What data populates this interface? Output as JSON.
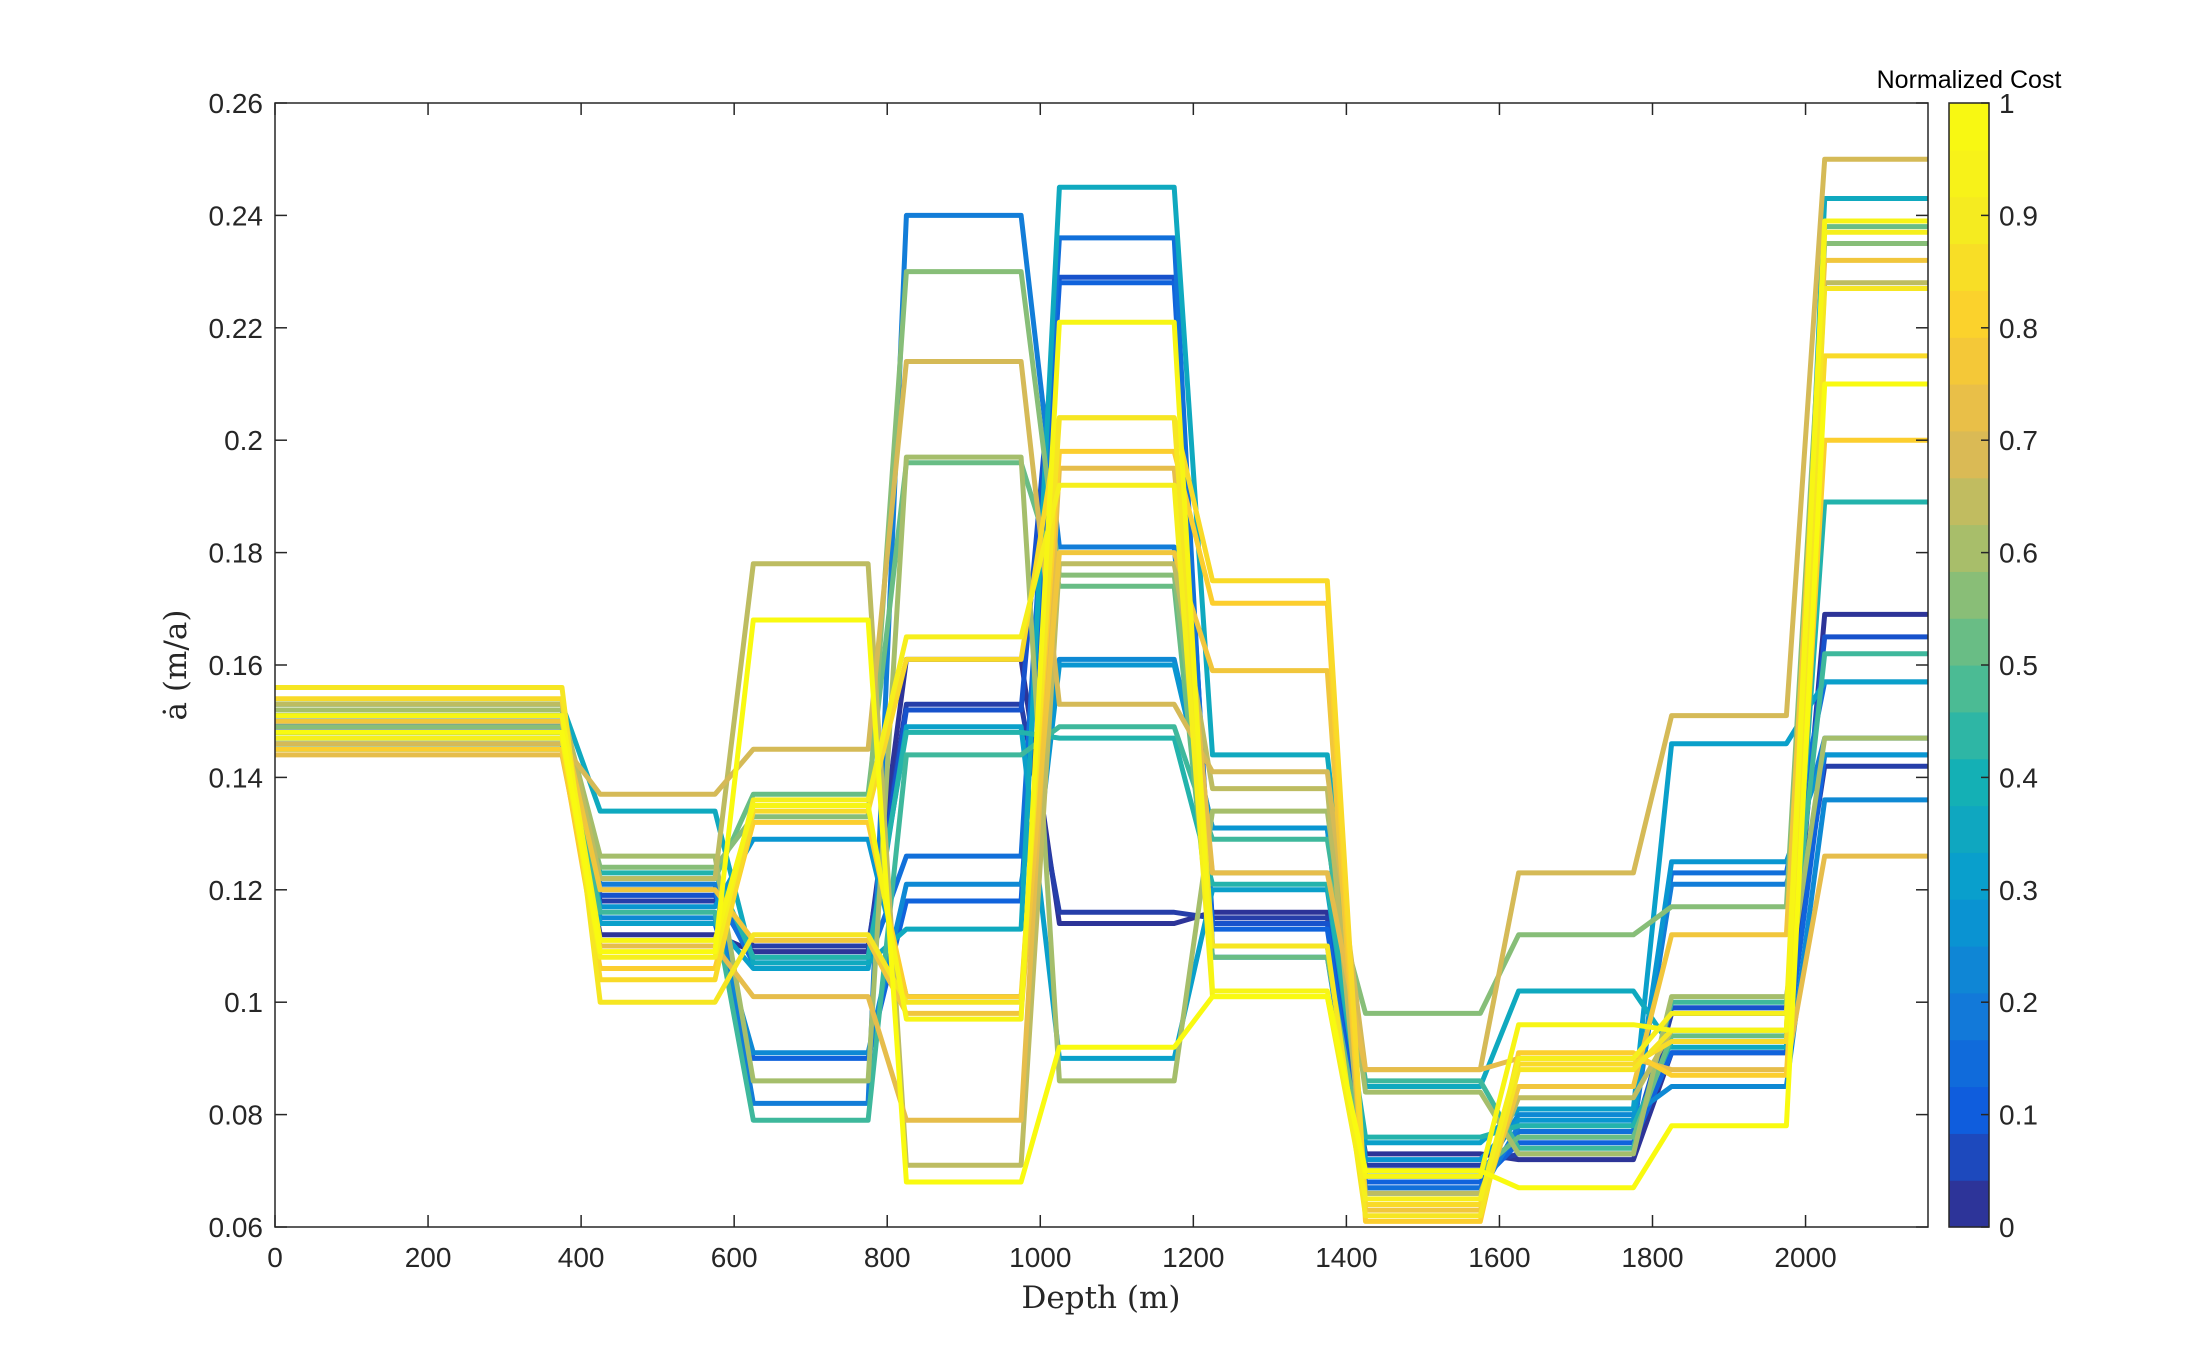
{
  "chart_data": {
    "type": "line",
    "xlabel": "Depth (m)",
    "ylabel": "ȧ (m/a)",
    "xlim": [
      0,
      2160
    ],
    "ylim": [
      0.06,
      0.26
    ],
    "xticks": [
      "0",
      "200",
      "400",
      "600",
      "800",
      "1000",
      "1200",
      "1400",
      "1600",
      "1800",
      "2000"
    ],
    "yticks": [
      "0.06",
      "0.08",
      "0.1",
      "0.12",
      "0.14",
      "0.16",
      "0.18",
      "0.2",
      "0.22",
      "0.24",
      "0.26"
    ],
    "grid": false,
    "colorbar": {
      "title": "Normalized Cost",
      "colormap": "parula",
      "range": [
        0,
        1
      ],
      "ticks": [
        "0",
        "0.1",
        "0.2",
        "0.3",
        "0.4",
        "0.5",
        "0.6",
        "0.7",
        "0.8",
        "0.9",
        "1"
      ],
      "levels": 24
    },
    "segment_breaks": [
      0,
      375,
      425,
      575,
      625,
      775,
      825,
      975,
      1025,
      1175,
      1225,
      1375,
      1425,
      1575,
      1625,
      1775,
      1825,
      1975,
      2025,
      2160
    ],
    "series": [
      {
        "cost": 0.02,
        "values": [
          0.149,
          0.112,
          0.109,
          0.161,
          0.114,
          0.116,
          0.073,
          0.072,
          0.091,
          0.169
        ]
      },
      {
        "cost": 0.04,
        "values": [
          0.148,
          0.118,
          0.11,
          0.153,
          0.116,
          0.115,
          0.071,
          0.073,
          0.098,
          0.142
        ]
      },
      {
        "cost": 0.08,
        "values": [
          0.149,
          0.119,
          0.108,
          0.152,
          0.229,
          0.114,
          0.07,
          0.076,
          0.099,
          0.165
        ]
      },
      {
        "cost": 0.12,
        "values": [
          0.15,
          0.114,
          0.09,
          0.118,
          0.228,
          0.113,
          0.068,
          0.075,
          0.091,
          0.144
        ]
      },
      {
        "cost": 0.16,
        "values": [
          0.151,
          0.12,
          0.107,
          0.126,
          0.236,
          0.11,
          0.067,
          0.077,
          0.123,
          0.157
        ]
      },
      {
        "cost": 0.2,
        "values": [
          0.148,
          0.121,
          0.082,
          0.24,
          0.181,
          0.108,
          0.066,
          0.078,
          0.121,
          0.147
        ]
      },
      {
        "cost": 0.24,
        "values": [
          0.147,
          0.115,
          0.091,
          0.121,
          0.161,
          0.131,
          0.069,
          0.08,
          0.085,
          0.136
        ]
      },
      {
        "cost": 0.28,
        "values": [
          0.152,
          0.117,
          0.129,
          0.101,
          0.16,
          0.131,
          0.072,
          0.079,
          0.125,
          0.144
        ]
      },
      {
        "cost": 0.32,
        "values": [
          0.146,
          0.114,
          0.106,
          0.149,
          0.09,
          0.12,
          0.075,
          0.081,
          0.146,
          0.157
        ]
      },
      {
        "cost": 0.36,
        "values": [
          0.153,
          0.134,
          0.107,
          0.113,
          0.245,
          0.144,
          0.085,
          0.102,
          0.092,
          0.243
        ]
      },
      {
        "cost": 0.42,
        "values": [
          0.145,
          0.123,
          0.108,
          0.148,
          0.147,
          0.121,
          0.076,
          0.078,
          0.093,
          0.189
        ]
      },
      {
        "cost": 0.46,
        "values": [
          0.151,
          0.116,
          0.079,
          0.144,
          0.149,
          0.129,
          0.086,
          0.074,
          0.1,
          0.162
        ]
      },
      {
        "cost": 0.52,
        "values": [
          0.147,
          0.122,
          0.137,
          0.196,
          0.174,
          0.108,
          0.07,
          0.076,
          0.094,
          0.238
        ]
      },
      {
        "cost": 0.56,
        "values": [
          0.149,
          0.124,
          0.133,
          0.23,
          0.176,
          0.123,
          0.098,
          0.112,
          0.117,
          0.235
        ]
      },
      {
        "cost": 0.6,
        "values": [
          0.152,
          0.126,
          0.086,
          0.197,
          0.086,
          0.134,
          0.084,
          0.073,
          0.101,
          0.147
        ]
      },
      {
        "cost": 0.64,
        "values": [
          0.153,
          0.122,
          0.178,
          0.071,
          0.178,
          0.138,
          0.066,
          0.083,
          0.095,
          0.228
        ]
      },
      {
        "cost": 0.68,
        "values": [
          0.146,
          0.137,
          0.145,
          0.214,
          0.153,
          0.141,
          0.088,
          0.123,
          0.151,
          0.25
        ]
      },
      {
        "cost": 0.72,
        "values": [
          0.144,
          0.11,
          0.101,
          0.079,
          0.195,
          0.123,
          0.088,
          0.09,
          0.088,
          0.126
        ]
      },
      {
        "cost": 0.76,
        "values": [
          0.15,
          0.12,
          0.111,
          0.098,
          0.18,
          0.159,
          0.063,
          0.085,
          0.112,
          0.232
        ]
      },
      {
        "cost": 0.8,
        "values": [
          0.145,
          0.106,
          0.132,
          0.101,
          0.198,
          0.171,
          0.061,
          0.091,
          0.087,
          0.2
        ]
      },
      {
        "cost": 0.84,
        "values": [
          0.154,
          0.104,
          0.134,
          0.161,
          0.204,
          0.175,
          0.064,
          0.089,
          0.093,
          0.215
        ]
      },
      {
        "cost": 0.88,
        "values": [
          0.156,
          0.1,
          0.112,
          0.1,
          0.204,
          0.11,
          0.062,
          0.088,
          0.095,
          0.227
        ]
      },
      {
        "cost": 0.92,
        "values": [
          0.147,
          0.108,
          0.136,
          0.165,
          0.192,
          0.101,
          0.065,
          0.09,
          0.098,
          0.237
        ]
      },
      {
        "cost": 0.96,
        "values": [
          0.151,
          0.111,
          0.135,
          0.097,
          0.221,
          0.102,
          0.069,
          0.096,
          0.095,
          0.239
        ]
      },
      {
        "cost": 0.99,
        "values": [
          0.148,
          0.109,
          0.168,
          0.068,
          0.092,
          0.101,
          0.07,
          0.067,
          0.078,
          0.21
        ]
      }
    ]
  }
}
